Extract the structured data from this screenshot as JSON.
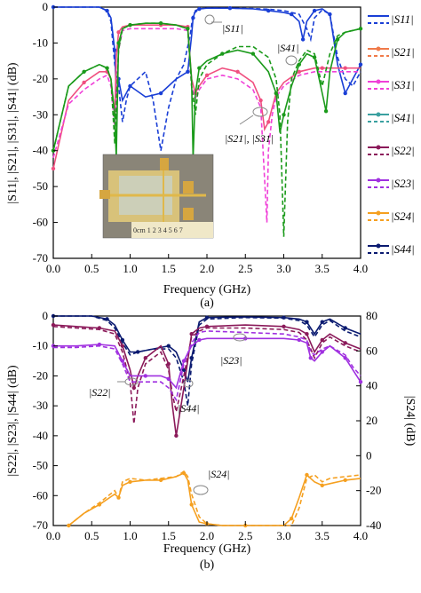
{
  "colors": {
    "S11": "#1a3fd6",
    "S21": "#f07a4a",
    "S31": "#f040d8",
    "S41": "#3aa0a0",
    "S22": "#8b1a5a",
    "S23": "#a030e0",
    "S24": "#f5a020",
    "S44": "#0a1a70",
    "S41_green": "#1a9a1a",
    "S21_pink": "#f05080"
  },
  "captions": {
    "a": "(a)",
    "b": "(b)"
  },
  "chart_data": [
    {
      "id": "a",
      "type": "line",
      "xlabel": "Frequency (GHz)",
      "ylabel": "|S11|, |S21|, |S31|, |S41| (dB)",
      "xlim": [
        0,
        4.0
      ],
      "ylim": [
        -70,
        0
      ],
      "xticks": [
        "0.0",
        "0.5",
        "1.0",
        "1.5",
        "2.0",
        "2.5",
        "3.0",
        "3.5",
        "4.0"
      ],
      "yticks": [
        "0",
        "-10",
        "-20",
        "-30",
        "-40",
        "-50",
        "-60",
        "-70"
      ],
      "legend_position": "right",
      "legend": [
        "|S11|",
        "|S21|",
        "|S31|",
        "|S41|",
        "|S22|",
        "|S23|",
        "|S24|",
        "|S44|"
      ],
      "annotations": [
        "|S11|",
        "|S41|",
        "|S21|, |S31|"
      ],
      "series": [
        {
          "key": "S11",
          "style": "solid",
          "color": "S11",
          "x": [
            0,
            0.6,
            0.7,
            0.75,
            0.8,
            0.82,
            0.85,
            0.9,
            1.0,
            1.2,
            1.4,
            1.6,
            1.75,
            1.8,
            1.82,
            1.85,
            1.9,
            2.0,
            2.3,
            2.6,
            2.8,
            3.0,
            3.1,
            3.2,
            3.25,
            3.3,
            3.4,
            3.5,
            3.6,
            3.7,
            3.8,
            3.9,
            4.0
          ],
          "y": [
            0,
            0,
            -1,
            -3,
            -12,
            -25,
            -20,
            -26,
            -22,
            -25,
            -24,
            -20,
            -18,
            -8,
            -3,
            -1,
            -0.5,
            -0.3,
            -0.3,
            -0.5,
            -1,
            -1.5,
            -2,
            -4,
            -9,
            -4,
            -1,
            -0.5,
            -2,
            -16,
            -24,
            -20,
            -16
          ]
        },
        {
          "key": "S11",
          "style": "dashed",
          "color": "S11",
          "x": [
            0,
            0.6,
            0.7,
            0.75,
            0.8,
            0.85,
            0.9,
            0.95,
            1.0,
            1.2,
            1.3,
            1.4,
            1.5,
            1.6,
            1.7,
            1.78,
            1.82,
            1.9,
            2.0,
            2.3,
            2.6,
            2.8,
            3.0,
            3.2,
            3.3,
            3.35,
            3.4,
            3.5,
            3.6,
            3.7,
            3.8,
            3.9,
            4.0
          ],
          "y": [
            0,
            0,
            -1,
            -4,
            -16,
            -22,
            -32,
            -26,
            -22,
            -18,
            -26,
            -40,
            -28,
            -20,
            -16,
            -8,
            -2,
            -0.5,
            -0.3,
            -0.3,
            -0.4,
            -0.6,
            -1,
            -2,
            -6,
            -9,
            -3,
            -0.8,
            -2,
            -14,
            -20,
            -22,
            -18
          ]
        },
        {
          "key": "S21",
          "style": "solid",
          "color": "S21_pink",
          "x": [
            0,
            0.2,
            0.4,
            0.6,
            0.7,
            0.75,
            0.8,
            0.82,
            0.85,
            0.9,
            1.0,
            1.2,
            1.4,
            1.6,
            1.75,
            1.8,
            1.85,
            1.9,
            2.0,
            2.2,
            2.4,
            2.6,
            2.7,
            2.75,
            2.8,
            2.85,
            2.9,
            3.0,
            3.2,
            3.4,
            3.5,
            3.6,
            3.8,
            4.0
          ],
          "y": [
            -45,
            -26,
            -21,
            -18,
            -18,
            -20,
            -30,
            -14,
            -7,
            -5.5,
            -5,
            -5,
            -5,
            -5,
            -5.5,
            -20,
            -24,
            -22,
            -19,
            -17,
            -18,
            -21,
            -26,
            -34,
            -32,
            -28,
            -24,
            -21,
            -18,
            -17,
            -17,
            -17,
            -17,
            -17
          ]
        },
        {
          "key": "S31",
          "style": "dashed",
          "color": "S31",
          "x": [
            0,
            0.2,
            0.4,
            0.6,
            0.7,
            0.75,
            0.8,
            0.85,
            0.9,
            1.0,
            1.2,
            1.4,
            1.6,
            1.75,
            1.8,
            1.85,
            1.9,
            2.0,
            2.2,
            2.4,
            2.6,
            2.7,
            2.78,
            2.8,
            2.85,
            2.9,
            3.0,
            3.2,
            3.4,
            3.6,
            3.8,
            4.0
          ],
          "y": [
            -42,
            -27,
            -23,
            -20,
            -19,
            -22,
            -34,
            -12,
            -6.5,
            -6,
            -6,
            -6,
            -6,
            -6.5,
            -22,
            -26,
            -23,
            -20,
            -19,
            -20,
            -23,
            -28,
            -60,
            -40,
            -30,
            -25,
            -22,
            -19,
            -18,
            -18,
            -18,
            -18
          ]
        },
        {
          "key": "S41",
          "style": "solid",
          "color": "S41_green",
          "x": [
            0,
            0.2,
            0.4,
            0.6,
            0.7,
            0.75,
            0.8,
            0.82,
            0.85,
            0.9,
            1.0,
            1.2,
            1.4,
            1.6,
            1.75,
            1.8,
            1.82,
            1.85,
            1.9,
            2.0,
            2.2,
            2.4,
            2.6,
            2.8,
            2.9,
            2.95,
            3.0,
            3.1,
            3.2,
            3.3,
            3.4,
            3.5,
            3.55,
            3.6,
            3.7,
            3.8,
            4.0
          ],
          "y": [
            -40,
            -22,
            -18,
            -16,
            -17,
            -20,
            -30,
            -42,
            -10,
            -6,
            -5,
            -4.5,
            -4.5,
            -5,
            -6,
            -20,
            -42,
            -24,
            -17,
            -15,
            -13,
            -12,
            -13,
            -18,
            -24,
            -35,
            -30,
            -22,
            -16,
            -13,
            -14,
            -24,
            -29,
            -18,
            -9,
            -7,
            -6
          ]
        },
        {
          "key": "S41",
          "style": "dashed",
          "color": "S41_green",
          "x": [
            0,
            0.2,
            0.4,
            0.6,
            0.7,
            0.75,
            0.8,
            0.85,
            0.9,
            1.0,
            1.2,
            1.4,
            1.6,
            1.75,
            1.8,
            1.85,
            1.9,
            2.0,
            2.2,
            2.4,
            2.6,
            2.8,
            2.9,
            2.95,
            3.0,
            3.05,
            3.1,
            3.2,
            3.3,
            3.4,
            3.5,
            3.6,
            3.7,
            3.8,
            4.0
          ],
          "y": [
            -40,
            -22,
            -18,
            -16,
            -17,
            -20,
            -38,
            -12,
            -6,
            -5,
            -4.5,
            -4.5,
            -5,
            -6,
            -22,
            -30,
            -20,
            -16,
            -13,
            -11,
            -11,
            -14,
            -20,
            -30,
            -64,
            -32,
            -20,
            -15,
            -12,
            -13,
            -22,
            -13,
            -8,
            -7,
            -6
          ]
        }
      ]
    },
    {
      "id": "b",
      "type": "line",
      "xlabel": "Frequency (GHz)",
      "ylabel": "|S22|, |S23|, |S44| (dB)",
      "ylabel_right": "|S24| (dB)",
      "xlim": [
        0,
        4.0
      ],
      "ylim": [
        -70,
        0
      ],
      "ylim_right": [
        -40,
        80
      ],
      "xticks": [
        "0.0",
        "0.5",
        "1.0",
        "1.5",
        "2.0",
        "2.5",
        "3.0",
        "3.5",
        "4.0"
      ],
      "yticks": [
        "0",
        "-10",
        "-20",
        "-30",
        "-40",
        "-50",
        "-60",
        "-70"
      ],
      "yticks_right": [
        "80",
        "60",
        "40",
        "20",
        "0",
        "-20",
        "-40"
      ],
      "annotations": [
        "|S22|",
        "|S44|",
        "|S23|",
        "|S24|"
      ],
      "series": [
        {
          "key": "S44",
          "style": "solid",
          "color": "S44",
          "x": [
            0,
            0.5,
            0.7,
            0.8,
            0.9,
            1.0,
            1.1,
            1.3,
            1.5,
            1.6,
            1.7,
            1.75,
            1.8,
            1.9,
            2.0,
            2.5,
            3.0,
            3.2,
            3.3,
            3.4,
            3.5,
            3.6,
            3.8,
            4.0
          ],
          "y": [
            0,
            0,
            -1,
            -3,
            -8,
            -12,
            -12,
            -11,
            -10,
            -12,
            -18,
            -22,
            -14,
            -2,
            -0.5,
            -0.3,
            -0.5,
            -1,
            -2,
            -6,
            -2,
            -1,
            -4,
            -6
          ]
        },
        {
          "key": "S44",
          "style": "dashed",
          "color": "S44",
          "x": [
            0,
            0.5,
            0.7,
            0.8,
            0.9,
            1.0,
            1.1,
            1.3,
            1.5,
            1.6,
            1.7,
            1.75,
            1.8,
            1.9,
            2.0,
            2.5,
            3.0,
            3.2,
            3.3,
            3.4,
            3.5,
            3.6,
            3.8,
            4.0
          ],
          "y": [
            0,
            0,
            -1.5,
            -4,
            -9,
            -13,
            -12,
            -11,
            -11,
            -14,
            -22,
            -30,
            -16,
            -3,
            -1,
            -0.5,
            -0.7,
            -1.5,
            -3,
            -7,
            -3,
            -1.5,
            -5,
            -7
          ]
        },
        {
          "key": "S22",
          "style": "solid",
          "color": "S22",
          "x": [
            0,
            0.3,
            0.6,
            0.8,
            0.9,
            1.0,
            1.05,
            1.1,
            1.2,
            1.4,
            1.5,
            1.55,
            1.6,
            1.7,
            1.8,
            1.9,
            2.0,
            2.5,
            3.0,
            3.2,
            3.3,
            3.4,
            3.5,
            3.6,
            3.8,
            4.0
          ],
          "y": [
            -3,
            -3.5,
            -4,
            -5,
            -10,
            -18,
            -24,
            -20,
            -14,
            -10,
            -16,
            -30,
            -40,
            -24,
            -6,
            -4,
            -3.5,
            -3,
            -3.5,
            -4.5,
            -6,
            -12,
            -8,
            -6,
            -9,
            -11
          ]
        },
        {
          "key": "S22",
          "style": "dashed",
          "color": "S22",
          "x": [
            0,
            0.3,
            0.6,
            0.8,
            0.9,
            1.0,
            1.05,
            1.1,
            1.2,
            1.4,
            1.5,
            1.55,
            1.6,
            1.7,
            1.8,
            1.9,
            2.0,
            2.5,
            3.0,
            3.2,
            3.3,
            3.4,
            3.5,
            3.6,
            3.8,
            4.0
          ],
          "y": [
            -3.5,
            -4,
            -4.5,
            -6,
            -12,
            -22,
            -36,
            -24,
            -16,
            -12,
            -18,
            -26,
            -32,
            -20,
            -7,
            -5,
            -4,
            -4,
            -4.5,
            -5.5,
            -8,
            -14,
            -9,
            -7,
            -10,
            -12
          ]
        },
        {
          "key": "S23",
          "style": "solid",
          "color": "S23",
          "x": [
            0,
            0.3,
            0.6,
            0.8,
            0.9,
            1.0,
            1.2,
            1.4,
            1.5,
            1.6,
            1.7,
            1.8,
            1.9,
            2.0,
            2.5,
            3.0,
            3.2,
            3.3,
            3.35,
            3.4,
            3.5,
            3.6,
            3.8,
            3.9,
            4.0
          ],
          "y": [
            -10,
            -10,
            -9.5,
            -10,
            -15,
            -20,
            -20,
            -20,
            -21,
            -24,
            -15,
            -10,
            -8,
            -7.5,
            -7.5,
            -7.5,
            -8,
            -9,
            -14,
            -15,
            -12,
            -10,
            -14,
            -18,
            -22
          ]
        },
        {
          "key": "S23",
          "style": "dashed",
          "color": "S23",
          "x": [
            0,
            0.3,
            0.6,
            0.8,
            0.9,
            1.0,
            1.2,
            1.4,
            1.5,
            1.6,
            1.7,
            1.8,
            1.9,
            2.0,
            2.5,
            3.0,
            3.2,
            3.3,
            3.35,
            3.4,
            3.5,
            3.6,
            3.8,
            3.9,
            4.0
          ],
          "y": [
            -10.5,
            -10.5,
            -10,
            -11,
            -16,
            -22,
            -22,
            -22,
            -24,
            -28,
            -16,
            -9,
            -5.5,
            -5,
            -5.5,
            -6,
            -7,
            -8,
            -12,
            -13,
            -11,
            -10,
            -13,
            -17,
            -20
          ]
        },
        {
          "key": "S24",
          "axis": "right",
          "style": "solid",
          "color": "S24",
          "x": [
            0.2,
            0.4,
            0.6,
            0.8,
            0.85,
            0.9,
            1.0,
            1.2,
            1.4,
            1.6,
            1.7,
            1.75,
            1.8,
            1.9,
            2.0,
            2.2,
            2.5,
            3.0,
            3.1,
            3.2,
            3.3,
            3.4,
            3.5,
            3.6,
            3.8,
            4.0
          ],
          "y": [
            -40,
            -33,
            -28,
            -22,
            -24,
            -17,
            -15,
            -14,
            -14,
            -12,
            -10,
            -14,
            -28,
            -38,
            -39,
            -40,
            -41,
            -41,
            -36,
            -24,
            -11,
            -15,
            -17,
            -16,
            -14,
            -13
          ]
        },
        {
          "key": "S24",
          "axis": "right",
          "style": "dashed",
          "color": "S24",
          "x": [
            0.2,
            0.4,
            0.6,
            0.8,
            0.85,
            0.9,
            1.0,
            1.2,
            1.4,
            1.6,
            1.7,
            1.75,
            1.8,
            1.9,
            2.0,
            2.2,
            2.5,
            3.0,
            3.1,
            3.2,
            3.3,
            3.4,
            3.5,
            3.6,
            3.8,
            4.0
          ],
          "y": [
            -41,
            -33,
            -27,
            -20,
            -24,
            -15,
            -13,
            -14,
            -13,
            -12,
            -9,
            -12,
            -22,
            -35,
            -39,
            -41,
            -41,
            -41,
            -40,
            -30,
            -13,
            -11,
            -15,
            -13,
            -12,
            -11
          ]
        }
      ]
    }
  ],
  "photo": {
    "ruler_text": "0cm 1 2 3 4 5 6 7"
  }
}
